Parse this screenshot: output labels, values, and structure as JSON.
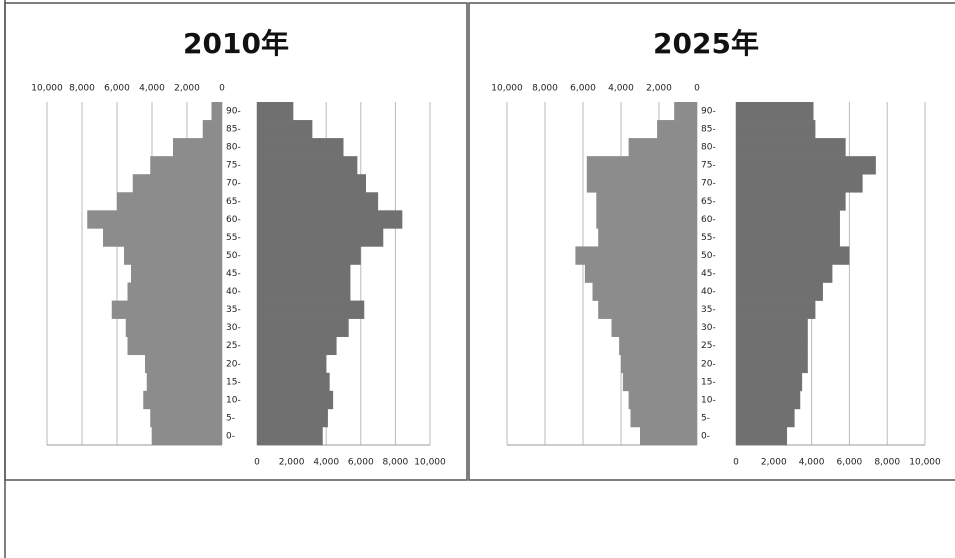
{
  "chart_data": [
    {
      "type": "pyramid",
      "title": "2010年",
      "categories": [
        "0-",
        "5-",
        "10-",
        "15-",
        "20-",
        "25-",
        "30-",
        "35-",
        "40-",
        "45-",
        "50-",
        "55-",
        "60-",
        "65-",
        "70-",
        "75-",
        "80-",
        "85-",
        "90-"
      ],
      "series": [
        {
          "color": "#8c8c8c",
          "values": [
            4000,
            4100,
            4500,
            4300,
            4400,
            5400,
            5500,
            6300,
            5400,
            5200,
            5600,
            6800,
            7700,
            6000,
            5100,
            4100,
            2800,
            1100,
            600
          ]
        },
        {
          "color": "#707070",
          "values": [
            3800,
            4100,
            4400,
            4200,
            4000,
            4600,
            5300,
            6200,
            5400,
            5400,
            6000,
            7300,
            8400,
            7000,
            6300,
            5800,
            5000,
            3200,
            2100
          ]
        }
      ],
      "xlim": [
        0,
        10000
      ],
      "xticks": [
        0,
        {
          "value": 2000,
          "label": "2,000"
        },
        {
          "value": 4000,
          "label": "4,000"
        },
        {
          "value": 6000,
          "label": "6,000"
        },
        {
          "value": 8000,
          "label": "8,000"
        },
        {
          "value": 10000,
          "label": "10,000"
        }
      ],
      "grid": true
    },
    {
      "type": "pyramid",
      "title": "2025年",
      "categories": [
        "0-",
        "5-",
        "10-",
        "15-",
        "20-",
        "25-",
        "30-",
        "35-",
        "40-",
        "45-",
        "50-",
        "55-",
        "60-",
        "65-",
        "70-",
        "75-",
        "80-",
        "85-",
        "90-"
      ],
      "series": [
        {
          "color": "#8c8c8c",
          "values": [
            3000,
            3500,
            3600,
            3900,
            4000,
            4100,
            4500,
            5200,
            5500,
            5900,
            6400,
            5200,
            5300,
            5300,
            5800,
            5800,
            3600,
            2100,
            1200
          ]
        },
        {
          "color": "#707070",
          "values": [
            2700,
            3100,
            3400,
            3500,
            3800,
            3800,
            3800,
            4200,
            4600,
            5100,
            6000,
            5500,
            5500,
            5800,
            6700,
            7400,
            5800,
            4200,
            4100
          ]
        }
      ],
      "xlim": [
        0,
        10000
      ],
      "xticks": [
        0,
        {
          "value": 2000,
          "label": "2,000"
        },
        {
          "value": 4000,
          "label": "4,000"
        },
        {
          "value": 6000,
          "label": "6,000"
        },
        {
          "value": 8000,
          "label": "8,000"
        },
        {
          "value": 10000,
          "label": "10,000"
        }
      ],
      "grid": true
    }
  ]
}
